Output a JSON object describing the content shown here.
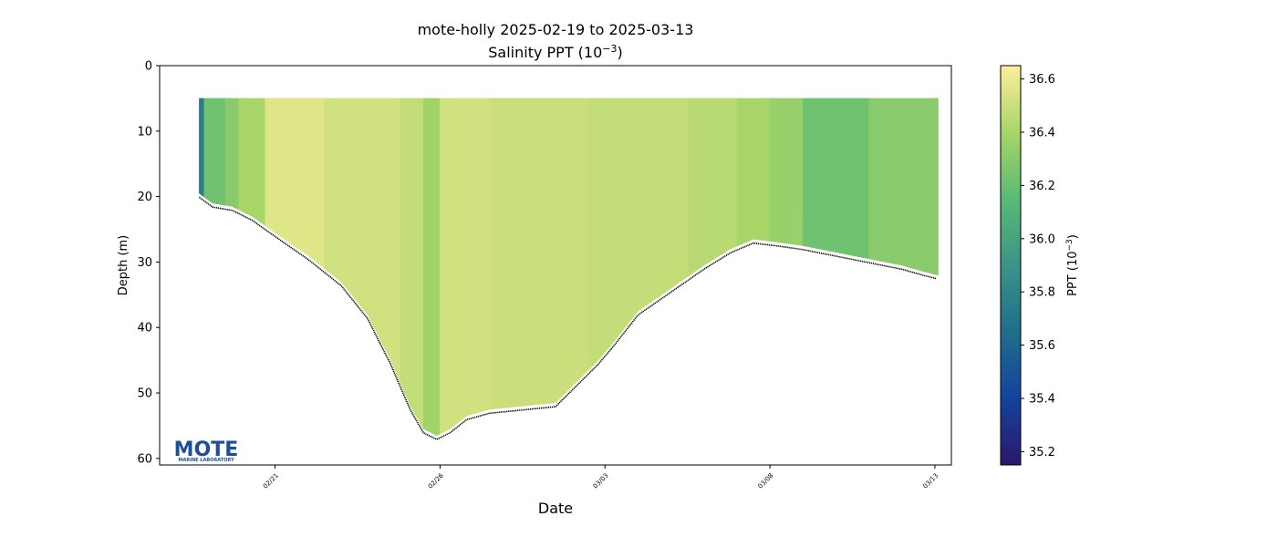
{
  "chart_data": {
    "type": "heatmap",
    "title_line1": "mote-holly 2025-02-19 to 2025-03-13",
    "title_line2": "Salinity PPT (10",
    "title_line2_exp": "−3",
    "title_line2_end": ")",
    "xlabel": "Date",
    "ylabel": "Depth (m)",
    "colorbar_label": "PPT (10",
    "colorbar_label_exp": "−3",
    "colorbar_label_end": ")",
    "x_ticks": [
      "02/21",
      "02/26",
      "03/03",
      "03/08",
      "03/13"
    ],
    "x_range_days": [
      0,
      24
    ],
    "x_tick_days": [
      3.5,
      8.5,
      13.5,
      18.5,
      23.5
    ],
    "y_ticks": [
      "0",
      "10",
      "20",
      "30",
      "40",
      "50",
      "60"
    ],
    "ylim": [
      0,
      61
    ],
    "y_inverted": true,
    "colorbar_ticks": [
      "35.2",
      "35.4",
      "35.6",
      "35.8",
      "36.0",
      "36.2",
      "36.4",
      "36.6"
    ],
    "colorbar_range": [
      35.15,
      36.65
    ],
    "colormap": "haline",
    "colormap_stops": [
      "#2a186c",
      "#14439c",
      "#206e8b",
      "#3c9387",
      "#5aba75",
      "#a8d568",
      "#fdef9a"
    ],
    "profile_top_depth": 5,
    "bottom_profile": [
      {
        "day": 1.2,
        "depth": 19.5
      },
      {
        "day": 1.6,
        "depth": 21.0
      },
      {
        "day": 2.2,
        "depth": 21.5
      },
      {
        "day": 2.8,
        "depth": 23.0
      },
      {
        "day": 3.5,
        "depth": 25.5
      },
      {
        "day": 4.5,
        "depth": 29.0
      },
      {
        "day": 5.5,
        "depth": 33.0
      },
      {
        "day": 6.3,
        "depth": 38.0
      },
      {
        "day": 7.0,
        "depth": 45.0
      },
      {
        "day": 7.6,
        "depth": 52.0
      },
      {
        "day": 8.0,
        "depth": 55.5
      },
      {
        "day": 8.4,
        "depth": 56.5
      },
      {
        "day": 8.8,
        "depth": 55.5
      },
      {
        "day": 9.3,
        "depth": 53.5
      },
      {
        "day": 10.0,
        "depth": 52.5
      },
      {
        "day": 11.0,
        "depth": 52.0
      },
      {
        "day": 12.0,
        "depth": 51.5
      },
      {
        "day": 12.7,
        "depth": 48.0
      },
      {
        "day": 13.3,
        "depth": 45.0
      },
      {
        "day": 13.8,
        "depth": 42.0
      },
      {
        "day": 14.5,
        "depth": 37.5
      },
      {
        "day": 15.5,
        "depth": 34.0
      },
      {
        "day": 16.5,
        "depth": 30.5
      },
      {
        "day": 17.3,
        "depth": 28.0
      },
      {
        "day": 18.0,
        "depth": 26.5
      },
      {
        "day": 18.8,
        "depth": 27.0
      },
      {
        "day": 19.5,
        "depth": 27.5
      },
      {
        "day": 20.5,
        "depth": 28.5
      },
      {
        "day": 21.5,
        "depth": 29.5
      },
      {
        "day": 22.5,
        "depth": 30.5
      },
      {
        "day": 23.2,
        "depth": 31.5
      },
      {
        "day": 23.6,
        "depth": 32.0
      }
    ],
    "salinity_bands": [
      {
        "day_start": 1.2,
        "day_end": 1.35,
        "value": 35.75
      },
      {
        "day_start": 1.35,
        "day_end": 2.0,
        "value": 36.22
      },
      {
        "day_start": 2.0,
        "day_end": 2.4,
        "value": 36.3
      },
      {
        "day_start": 2.4,
        "day_end": 3.2,
        "value": 36.4
      },
      {
        "day_start": 3.2,
        "day_end": 5.0,
        "value": 36.56
      },
      {
        "day_start": 5.0,
        "day_end": 7.3,
        "value": 36.52
      },
      {
        "day_start": 7.3,
        "day_end": 8.0,
        "value": 36.48
      },
      {
        "day_start": 8.0,
        "day_end": 8.5,
        "value": 36.38
      },
      {
        "day_start": 8.5,
        "day_end": 10.0,
        "value": 36.52
      },
      {
        "day_start": 10.0,
        "day_end": 13.0,
        "value": 36.5
      },
      {
        "day_start": 13.0,
        "day_end": 16.0,
        "value": 36.48
      },
      {
        "day_start": 16.0,
        "day_end": 17.5,
        "value": 36.45
      },
      {
        "day_start": 17.5,
        "day_end": 18.5,
        "value": 36.4
      },
      {
        "day_start": 18.5,
        "day_end": 19.5,
        "value": 36.35
      },
      {
        "day_start": 19.5,
        "day_end": 21.5,
        "value": 36.22
      },
      {
        "day_start": 21.5,
        "day_end": 23.6,
        "value": 36.3
      }
    ],
    "logo_text": "MOTE",
    "logo_subtext": "MARINE LABORATORY"
  }
}
